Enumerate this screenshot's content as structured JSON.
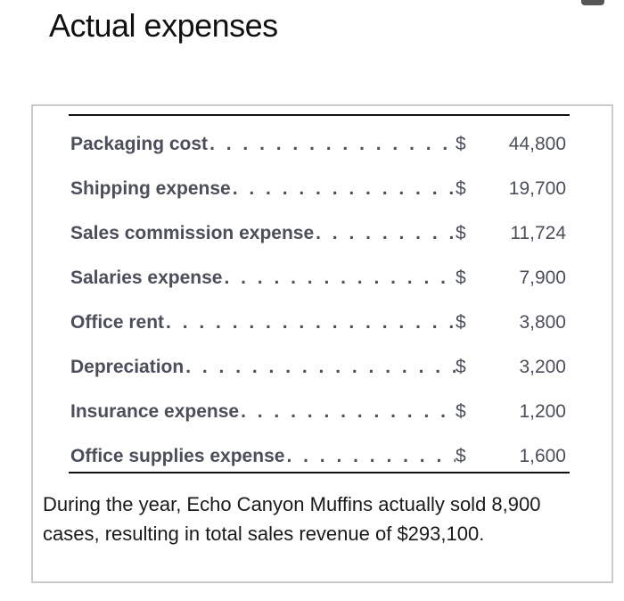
{
  "title": "Actual expenses",
  "expenses": [
    {
      "label": "Packaging cost",
      "currency": "$",
      "value": "44,800"
    },
    {
      "label": "Shipping expense",
      "currency": "$",
      "value": "19,700"
    },
    {
      "label": "Sales commission expense",
      "currency": "$",
      "value": "11,724"
    },
    {
      "label": "Salaries expense",
      "currency": "$",
      "value": "7,900"
    },
    {
      "label": "Office rent",
      "currency": "$",
      "value": "3,800"
    },
    {
      "label": "Depreciation",
      "currency": "$",
      "value": "3,200"
    },
    {
      "label": "Insurance expense",
      "currency": "$",
      "value": "1,200"
    },
    {
      "label": "Office supplies expense",
      "currency": "$",
      "value": "1,600"
    }
  ],
  "paragraph": "During the year, Echo Canyon Muffins actually sold 8,900 cases, resulting in total sales revenue of $293,100."
}
